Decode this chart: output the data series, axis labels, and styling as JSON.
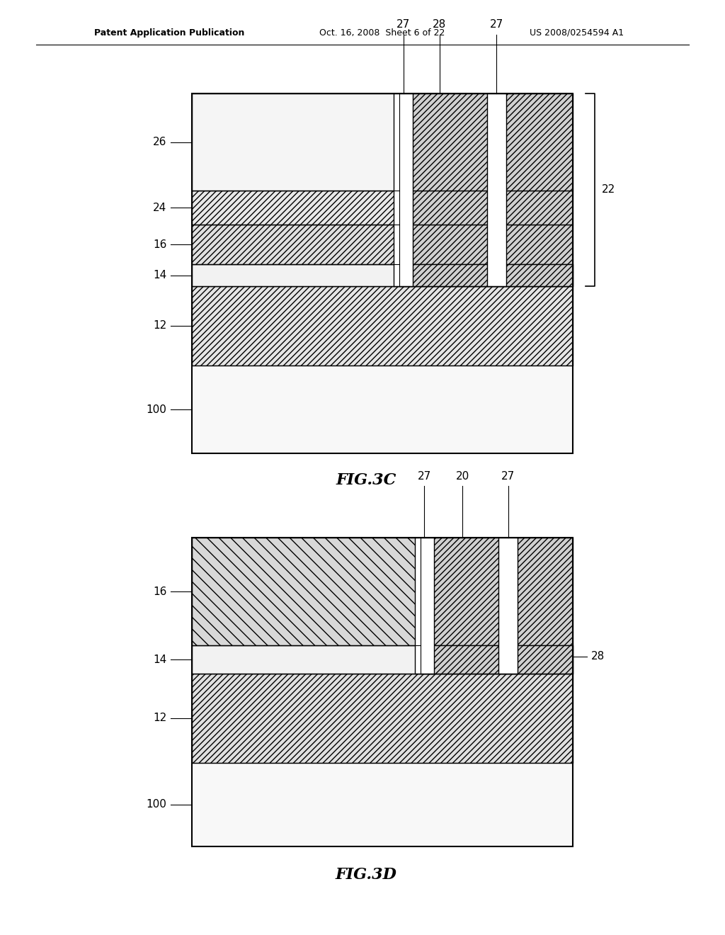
{
  "bg_color": "#ffffff",
  "header_left": "Patent Application Publication",
  "header_mid": "Oct. 16, 2008  Sheet 6 of 22",
  "header_right": "US 2008/0254594 A1",
  "fig3c_label": "FIG.3C",
  "fig3d_label": "FIG.3D"
}
